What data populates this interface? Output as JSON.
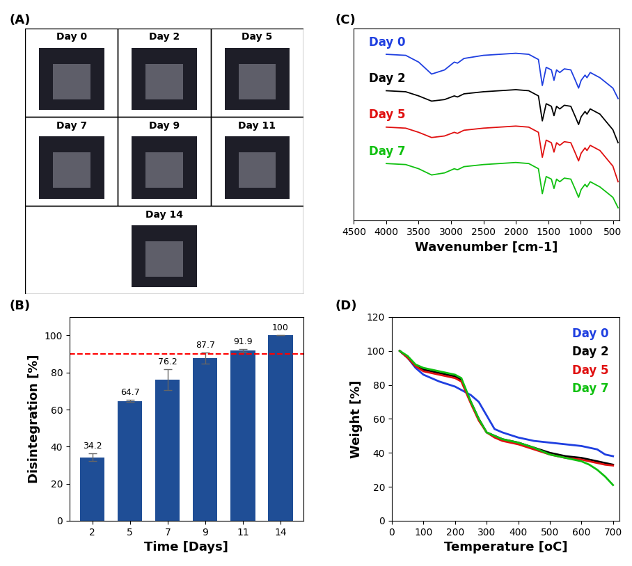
{
  "panel_labels": [
    "(A)",
    "(B)",
    "(C)",
    "(D)"
  ],
  "photo_grid": {
    "labels": [
      "Day 0",
      "Day 2",
      "Day 5",
      "Day 7",
      "Day 9",
      "Day 11",
      "Day 14"
    ]
  },
  "chart_data": [
    {
      "type": "bar",
      "x_label": "Time [Days]",
      "y_label": "Disintegration [%]",
      "categories": [
        "2",
        "5",
        "7",
        "9",
        "11",
        "14"
      ],
      "values": [
        34.2,
        64.7,
        76.2,
        87.7,
        91.9,
        100
      ],
      "errors": [
        2,
        0.6,
        5.5,
        3,
        0.6,
        0
      ],
      "reference_line": 90,
      "color": "#1f4e96",
      "data_labels": true,
      "ylim": [
        0,
        110
      ],
      "yticks": [
        0,
        20,
        40,
        60,
        80,
        100
      ]
    },
    {
      "type": "line",
      "x_label": "Wavenumber [cm-1]",
      "tick_labels": "x",
      "xlim": [
        4500,
        400
      ],
      "xticks": [
        4500,
        4000,
        3500,
        3000,
        2500,
        2000,
        1500,
        1000,
        500
      ],
      "ylim": [
        0.8,
        4.5
      ],
      "yticks": [],
      "x": [
        4000,
        3700,
        3500,
        3300,
        3100,
        2950,
        2900,
        2800,
        2500,
        2000,
        1800,
        1650,
        1590,
        1530,
        1450,
        1410,
        1370,
        1320,
        1250,
        1150,
        1080,
        1030,
        990,
        930,
        900,
        850,
        700,
        600,
        500,
        420
      ],
      "series": [
        {
          "name": "Day 0",
          "color": "#1f3fe0",
          "values": [
            4.0,
            3.98,
            3.85,
            3.62,
            3.7,
            3.85,
            3.83,
            3.92,
            3.98,
            4.02,
            4.0,
            3.9,
            3.4,
            3.75,
            3.7,
            3.5,
            3.7,
            3.65,
            3.72,
            3.7,
            3.5,
            3.35,
            3.5,
            3.6,
            3.55,
            3.65,
            3.55,
            3.45,
            3.35,
            3.15
          ]
        },
        {
          "name": "Day 2",
          "color": "#000000",
          "values": [
            3.3,
            3.28,
            3.2,
            3.1,
            3.13,
            3.2,
            3.18,
            3.24,
            3.28,
            3.32,
            3.3,
            3.2,
            2.72,
            3.05,
            3.0,
            2.82,
            3.0,
            2.95,
            3.02,
            3.0,
            2.8,
            2.65,
            2.8,
            2.9,
            2.85,
            2.95,
            2.85,
            2.7,
            2.55,
            2.3
          ]
        },
        {
          "name": "Day 5",
          "color": "#e01010",
          "values": [
            2.6,
            2.58,
            2.5,
            2.4,
            2.43,
            2.5,
            2.48,
            2.54,
            2.58,
            2.62,
            2.6,
            2.5,
            2.02,
            2.35,
            2.3,
            2.12,
            2.3,
            2.25,
            2.32,
            2.3,
            2.1,
            1.95,
            2.1,
            2.2,
            2.15,
            2.25,
            2.15,
            2.0,
            1.85,
            1.55
          ]
        },
        {
          "name": "Day 7",
          "color": "#10c010",
          "values": [
            1.9,
            1.88,
            1.8,
            1.68,
            1.72,
            1.8,
            1.78,
            1.84,
            1.88,
            1.92,
            1.9,
            1.8,
            1.32,
            1.65,
            1.6,
            1.42,
            1.6,
            1.55,
            1.62,
            1.6,
            1.4,
            1.25,
            1.4,
            1.5,
            1.45,
            1.55,
            1.45,
            1.35,
            1.25,
            1.05
          ]
        }
      ]
    },
    {
      "type": "line",
      "x_label": "Temperature [oC]",
      "y_label": "Weight [%]",
      "legend": "upper right",
      "xlim": [
        0,
        720
      ],
      "xticks": [
        0,
        100,
        200,
        300,
        400,
        500,
        600,
        700
      ],
      "ylim": [
        0,
        120
      ],
      "yticks": [
        0,
        20,
        40,
        60,
        80,
        100,
        120
      ],
      "x": [
        25,
        50,
        75,
        100,
        150,
        200,
        220,
        250,
        275,
        300,
        325,
        350,
        400,
        450,
        500,
        550,
        600,
        625,
        650,
        675,
        700
      ],
      "series": [
        {
          "name": "Day 0",
          "color": "#1f3fe0",
          "values": [
            100,
            96,
            90,
            86,
            82,
            79,
            77,
            74,
            70,
            62,
            54,
            52,
            49,
            47,
            46,
            45,
            44,
            43,
            42,
            39,
            38
          ]
        },
        {
          "name": "Day 2",
          "color": "#000000",
          "values": [
            100,
            96,
            91,
            89,
            87,
            85,
            83,
            70,
            60,
            52,
            50,
            48,
            46,
            43,
            40,
            38,
            37,
            36,
            35,
            34,
            33
          ]
        },
        {
          "name": "Day 5",
          "color": "#e01010",
          "values": [
            100,
            96,
            91,
            88,
            86,
            84,
            82,
            69,
            59,
            52,
            49,
            47,
            45,
            42,
            39,
            37,
            36,
            35,
            34,
            33,
            32.5
          ]
        },
        {
          "name": "Day 7",
          "color": "#10c010",
          "values": [
            100,
            97,
            92,
            90,
            88,
            86,
            84,
            70,
            60,
            52,
            50,
            48,
            46,
            43,
            39,
            37,
            35,
            33,
            30,
            26,
            21
          ]
        }
      ]
    }
  ]
}
